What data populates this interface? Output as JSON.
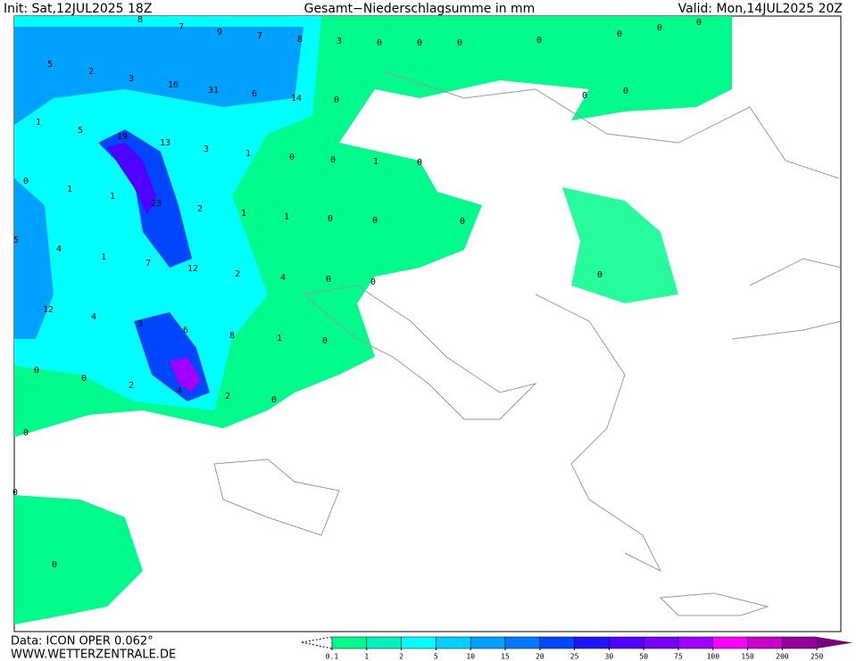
{
  "header": {
    "init": "Init: Sat,12JUL2025 18Z",
    "title": "Gesamt−Niederschlagsumme in mm",
    "valid": "Valid: Mon,14JUL2025 20Z"
  },
  "footer": {
    "data": "Data: ICON OPER 0.062°",
    "site": "WWW.WETTERZENTRALE.DE"
  },
  "legend": {
    "ticks": [
      0.1,
      1,
      2,
      5,
      10,
      15,
      20,
      25,
      30,
      50,
      75,
      100,
      150,
      200,
      250
    ],
    "colors": [
      "#00fa8c",
      "#00f0c0",
      "#00ffff",
      "#00d2ff",
      "#00a0ff",
      "#0078ff",
      "#0046ff",
      "#1e14ff",
      "#5000ff",
      "#7800ff",
      "#a000ff",
      "#ff00ff",
      "#c800c8",
      "#96009b"
    ],
    "over_color": "#78007d"
  },
  "map_labels": [
    8,
    7,
    9,
    7,
    8,
    3,
    0,
    0,
    0,
    0,
    0,
    0,
    0,
    5,
    2,
    3,
    16,
    31,
    6,
    14,
    0,
    0,
    0,
    1,
    5,
    19,
    13,
    3,
    1,
    0,
    0,
    1,
    0,
    0,
    1,
    1,
    23,
    2,
    1,
    1,
    0,
    0,
    0,
    5,
    4,
    1,
    7,
    12,
    2,
    4,
    0,
    0,
    0,
    12,
    4,
    3,
    6,
    8,
    1,
    0,
    0,
    0,
    2,
    4,
    2,
    0,
    0,
    0,
    0
  ]
}
